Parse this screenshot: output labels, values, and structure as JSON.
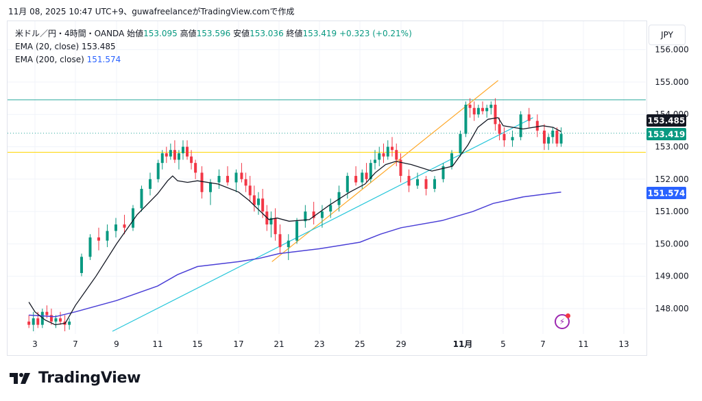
{
  "header": {
    "published": "11月 08, 2025 10:47 UTC+9、guwafreelanceがTradingView.comで作成"
  },
  "legend": {
    "symbol": "米ドル／円・4時間・OANDA",
    "open_label": "始値",
    "open": "153.095",
    "high_label": "高値",
    "high": "153.596",
    "low_label": "安値",
    "low": "153.036",
    "close_label": "終値",
    "close": "153.419",
    "change": "+0.323 (+0.21%)",
    "ema20_label": "EMA (20, close)",
    "ema20_value": "153.485",
    "ema200_label": "EMA (200, close)",
    "ema200_value": "151.574"
  },
  "currency_label": "JPY",
  "brand": "TradingView",
  "colors": {
    "up": "#089981",
    "down": "#f23645",
    "ema20": "#131722",
    "ema200": "#4a3fd6",
    "orange_trend": "#ffa726",
    "cyan_trend": "#26c6da",
    "yellow_line": "#ffe14d",
    "teal_line": "#26a69a",
    "grid": "#f0f3fa"
  },
  "chart_data": {
    "type": "candlestick",
    "ylim": [
      147.4,
      156.6
    ],
    "y_ticks": [
      "148.000",
      "149.000",
      "150.000",
      "151.000",
      "152.000",
      "153.000",
      "154.000",
      "155.000",
      "156.000"
    ],
    "x_ticks": [
      "3",
      "7",
      "9",
      "11",
      "15",
      "17",
      "21",
      "23",
      "25",
      "29",
      "11月",
      "5",
      "7",
      "11",
      "13"
    ],
    "price_labels": [
      {
        "name": "ema20",
        "value": 153.485,
        "text": "153.485",
        "color": "#131722"
      },
      {
        "name": "close",
        "value": 153.419,
        "text": "153.419",
        "color": "#089981"
      },
      {
        "name": "ema200",
        "value": 151.574,
        "text": "151.574",
        "color": "#2962ff"
      }
    ],
    "horizontal_lines": [
      {
        "name": "resistance",
        "value": 154.45,
        "color": "#26a69a"
      },
      {
        "name": "close-level",
        "value": 153.419,
        "color": "#26a69a",
        "dotted": true
      },
      {
        "name": "support",
        "value": 152.83,
        "color": "#ffd600"
      }
    ],
    "trend_lines": [
      {
        "name": "orange-trend",
        "from": [
          17.3,
          149.45
        ],
        "to": [
          32.5,
          155.05
        ],
        "color": "#ffa726"
      },
      {
        "name": "cyan-trend",
        "from": [
          5.8,
          147.3
        ],
        "to": [
          34.5,
          153.9
        ],
        "color": "#26c6da"
      }
    ],
    "ema20": [
      [
        -0.6,
        148.2
      ],
      [
        0,
        147.9
      ],
      [
        1,
        147.65
      ],
      [
        2,
        147.5
      ],
      [
        3,
        147.55
      ],
      [
        4,
        148.1
      ],
      [
        5,
        149.0
      ],
      [
        6,
        150.0
      ],
      [
        7,
        150.9
      ],
      [
        8,
        151.55
      ],
      [
        9,
        151.95
      ],
      [
        9.5,
        152.1
      ],
      [
        10,
        151.95
      ],
      [
        11,
        151.9
      ],
      [
        12,
        151.95
      ],
      [
        13,
        151.85
      ],
      [
        14,
        151.6
      ],
      [
        15,
        151.35
      ],
      [
        16,
        151.05
      ],
      [
        17,
        150.75
      ],
      [
        17.8,
        150.8
      ],
      [
        18.5,
        150.7
      ],
      [
        19.5,
        150.75
      ],
      [
        20.5,
        151.2
      ],
      [
        21.5,
        151.6
      ],
      [
        22.5,
        151.85
      ],
      [
        23.5,
        152.2
      ],
      [
        24.5,
        152.45
      ],
      [
        25.5,
        152.55
      ],
      [
        26.5,
        152.45
      ],
      [
        27.5,
        152.25
      ],
      [
        28.5,
        152.4
      ],
      [
        29.5,
        153.05
      ],
      [
        30.5,
        153.6
      ],
      [
        31.5,
        153.85
      ],
      [
        32.5,
        153.9
      ],
      [
        33,
        153.65
      ],
      [
        34,
        153.55
      ],
      [
        35,
        153.65
      ],
      [
        36,
        153.6
      ],
      [
        36.8,
        153.47
      ]
    ],
    "ema200": [
      [
        -0.6,
        147.8
      ],
      [
        2,
        147.75
      ],
      [
        4,
        147.9
      ],
      [
        6,
        148.25
      ],
      [
        8,
        148.7
      ],
      [
        10,
        149.05
      ],
      [
        12,
        149.3
      ],
      [
        14,
        149.45
      ],
      [
        16,
        149.55
      ],
      [
        18,
        149.7
      ],
      [
        20,
        149.85
      ],
      [
        22,
        150.05
      ],
      [
        24,
        150.3
      ],
      [
        26,
        150.5
      ],
      [
        28,
        150.72
      ],
      [
        30,
        151.0
      ],
      [
        32,
        151.25
      ],
      [
        34,
        151.45
      ],
      [
        36,
        151.57
      ],
      [
        36.8,
        151.6
      ]
    ],
    "candles_ohlc": [
      [
        147.6,
        147.8,
        147.4,
        147.5
      ],
      [
        147.5,
        147.9,
        147.3,
        147.7
      ],
      [
        147.7,
        147.9,
        147.4,
        147.5
      ],
      [
        147.5,
        148.0,
        147.4,
        147.9
      ],
      [
        147.9,
        148.1,
        147.7,
        147.8
      ],
      [
        147.8,
        148.0,
        147.5,
        147.6
      ],
      [
        147.6,
        147.8,
        147.4,
        147.7
      ],
      [
        147.7,
        147.9,
        147.5,
        147.6
      ],
      [
        147.6,
        147.8,
        147.3,
        147.5
      ],
      [
        147.5,
        147.7,
        147.35,
        147.6
      ],
      [
        149.1,
        149.7,
        149.0,
        149.6
      ],
      [
        149.6,
        150.3,
        149.5,
        150.2
      ],
      [
        150.2,
        150.5,
        149.8,
        150.1
      ],
      [
        150.1,
        150.6,
        149.9,
        150.4
      ],
      [
        150.4,
        150.8,
        150.2,
        150.6
      ],
      [
        150.6,
        150.9,
        150.3,
        150.5
      ],
      [
        150.5,
        151.2,
        150.4,
        151.1
      ],
      [
        151.1,
        151.8,
        151.0,
        151.7
      ],
      [
        151.7,
        152.2,
        151.5,
        152.0
      ],
      [
        152.0,
        152.6,
        151.9,
        152.5
      ],
      [
        152.5,
        152.9,
        152.3,
        152.8
      ],
      [
        152.8,
        153.0,
        152.5,
        152.7
      ],
      [
        152.7,
        153.1,
        152.6,
        152.9
      ],
      [
        152.9,
        153.2,
        152.5,
        152.6
      ],
      [
        152.6,
        152.9,
        152.3,
        152.8
      ],
      [
        152.8,
        153.2,
        152.6,
        153.0
      ],
      [
        153.0,
        153.2,
        152.6,
        152.7
      ],
      [
        152.7,
        152.9,
        152.3,
        152.5
      ],
      [
        152.5,
        152.6,
        152.0,
        152.2
      ],
      [
        152.2,
        152.4,
        151.4,
        151.6
      ],
      [
        151.6,
        152.0,
        151.2,
        151.9
      ],
      [
        151.9,
        152.3,
        151.7,
        152.1
      ],
      [
        152.1,
        152.4,
        151.8,
        151.9
      ],
      [
        151.9,
        152.3,
        151.6,
        152.2
      ],
      [
        152.2,
        152.5,
        151.9,
        152.0
      ],
      [
        152.0,
        152.2,
        151.6,
        151.8
      ],
      [
        151.8,
        152.1,
        151.3,
        151.5
      ],
      [
        151.5,
        151.8,
        151.0,
        151.2
      ],
      [
        151.2,
        151.6,
        150.9,
        151.4
      ],
      [
        151.4,
        151.7,
        150.8,
        151.0
      ],
      [
        151.0,
        151.2,
        150.4,
        150.6
      ],
      [
        150.6,
        151.0,
        150.2,
        150.8
      ],
      [
        150.8,
        151.1,
        150.1,
        150.3
      ],
      [
        150.3,
        150.6,
        149.7,
        149.9
      ],
      [
        149.9,
        150.3,
        149.5,
        150.1
      ],
      [
        150.1,
        150.8,
        150.0,
        150.7
      ],
      [
        150.7,
        151.2,
        150.5,
        151.0
      ],
      [
        151.0,
        151.3,
        150.6,
        150.8
      ],
      [
        150.8,
        151.2,
        150.5,
        151.0
      ],
      [
        151.0,
        151.4,
        150.8,
        151.2
      ],
      [
        151.2,
        151.8,
        151.0,
        151.6
      ],
      [
        151.6,
        152.2,
        151.4,
        152.1
      ],
      [
        152.1,
        152.4,
        151.8,
        151.9
      ],
      [
        151.9,
        152.3,
        151.7,
        152.2
      ],
      [
        152.2,
        152.5,
        151.9,
        152.0
      ],
      [
        152.0,
        152.6,
        151.9,
        152.5
      ],
      [
        152.5,
        152.9,
        152.3,
        152.6
      ],
      [
        152.6,
        153.0,
        152.4,
        152.8
      ],
      [
        152.8,
        153.1,
        152.5,
        152.7
      ],
      [
        152.7,
        153.2,
        152.6,
        153.0
      ],
      [
        153.0,
        153.3,
        152.7,
        152.9
      ],
      [
        152.9,
        153.1,
        152.4,
        152.6
      ],
      [
        152.6,
        152.8,
        151.9,
        152.1
      ],
      [
        152.1,
        152.3,
        151.6,
        151.8
      ],
      [
        151.8,
        152.2,
        151.7,
        152.0
      ],
      [
        152.0,
        152.1,
        151.5,
        151.7
      ],
      [
        151.7,
        152.1,
        151.6,
        152.0
      ],
      [
        152.0,
        152.5,
        151.9,
        152.4
      ],
      [
        152.4,
        152.9,
        152.3,
        152.8
      ],
      [
        152.8,
        153.5,
        152.7,
        153.4
      ],
      [
        153.4,
        154.4,
        153.3,
        154.3
      ],
      [
        154.3,
        154.5,
        153.9,
        154.2
      ],
      [
        154.2,
        154.4,
        153.8,
        154.0
      ],
      [
        154.0,
        154.3,
        153.9,
        154.2
      ],
      [
        154.2,
        154.4,
        154.0,
        154.1
      ],
      [
        154.1,
        154.3,
        153.9,
        154.2
      ],
      [
        154.2,
        154.4,
        154.0,
        154.3
      ],
      [
        154.3,
        154.5,
        153.5,
        153.7
      ],
      [
        153.7,
        153.9,
        153.2,
        153.4
      ],
      [
        153.4,
        153.6,
        153.0,
        153.2
      ],
      [
        153.2,
        153.5,
        153.0,
        153.3
      ],
      [
        153.3,
        154.1,
        153.2,
        154.0
      ],
      [
        154.0,
        154.2,
        153.6,
        153.8
      ],
      [
        153.8,
        154.0,
        153.3,
        153.5
      ],
      [
        153.5,
        153.7,
        152.9,
        153.1
      ],
      [
        153.1,
        153.4,
        152.9,
        153.3
      ],
      [
        153.3,
        153.6,
        153.1,
        153.5
      ],
      [
        153.5,
        153.6,
        153.0,
        153.1
      ],
      [
        153.1,
        153.6,
        153.0,
        153.4
      ]
    ]
  }
}
